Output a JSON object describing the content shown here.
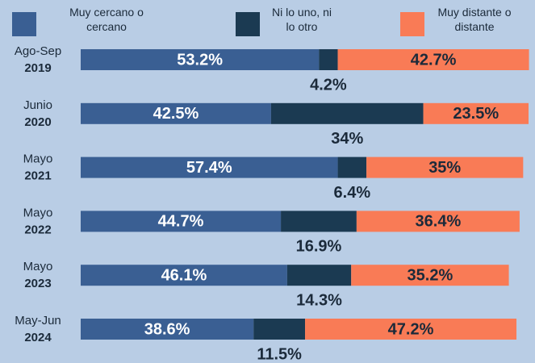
{
  "chart_data": {
    "type": "stacked-bar-horizontal",
    "categories": [
      [
        "Ago-Sep",
        "2019"
      ],
      [
        "Junio",
        "2020"
      ],
      [
        "Mayo",
        "2021"
      ],
      [
        "Mayo",
        "2022"
      ],
      [
        "Mayo",
        "2023"
      ],
      [
        "May-Jun",
        "2024"
      ]
    ],
    "xlim": [
      0,
      100
    ],
    "legend": "top",
    "series": [
      {
        "name": "Muy cercano o cercano",
        "color": "#3a5f93",
        "values": [
          53.2,
          42.5,
          57.4,
          44.7,
          46.1,
          38.6
        ],
        "value_labels": [
          "53.2%",
          "42.5%",
          "57.4%",
          "44.7%",
          "46.1%",
          "38.6%"
        ]
      },
      {
        "name": "Ni lo uno, ni lo otro",
        "color": "#1b3a52",
        "values": [
          4.2,
          34,
          6.4,
          16.9,
          14.3,
          11.5
        ],
        "value_labels": [
          "4.2%",
          "34%",
          "6.4%",
          "16.9%",
          "14.3%",
          "11.5%"
        ]
      },
      {
        "name": "Muy distante o distante",
        "color": "#f97b56",
        "values": [
          42.7,
          23.5,
          35,
          36.4,
          35.2,
          47.2
        ],
        "value_labels": [
          "42.7%",
          "23.5%",
          "35%",
          "36.4%",
          "35.2%",
          "47.2%"
        ]
      }
    ]
  }
}
